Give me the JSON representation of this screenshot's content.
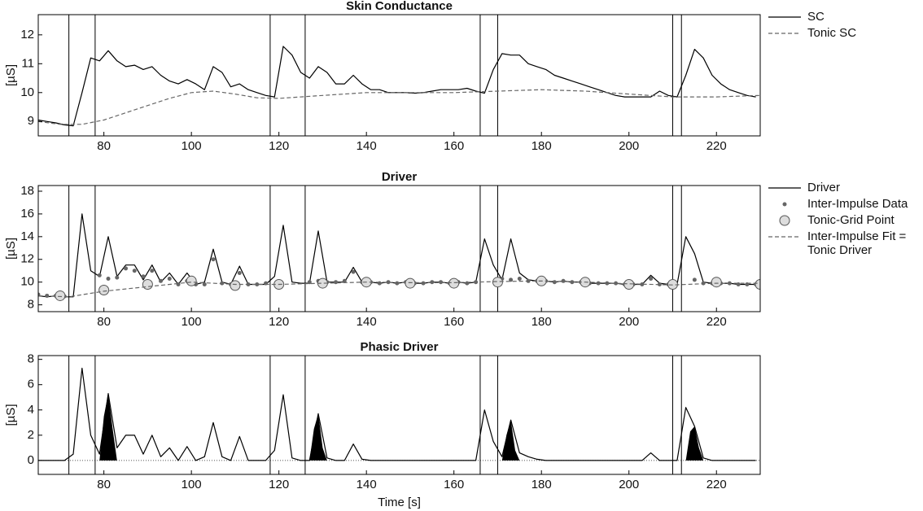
{
  "chart_data": [
    {
      "type": "line",
      "title": "Skin Conductance",
      "ylabel": "[µS]",
      "xlim": [
        65,
        230
      ],
      "ylim": [
        8.5,
        12.7
      ],
      "xticks": [
        80,
        100,
        120,
        140,
        160,
        180,
        200,
        220
      ],
      "yticks": [
        9,
        10,
        11,
        12
      ],
      "vlines": [
        72,
        78,
        118,
        126,
        166,
        170,
        210,
        212
      ],
      "series": [
        {
          "name": "SC",
          "color": "#000000",
          "style": "solid",
          "x": [
            65,
            67,
            69,
            71,
            73,
            75,
            77,
            79,
            81,
            83,
            85,
            87,
            89,
            91,
            93,
            95,
            97,
            99,
            101,
            103,
            105,
            107,
            109,
            111,
            113,
            115,
            117,
            119,
            121,
            123,
            125,
            127,
            129,
            131,
            133,
            135,
            137,
            139,
            141,
            143,
            145,
            147,
            149,
            151,
            153,
            155,
            157,
            159,
            161,
            163,
            165,
            167,
            169,
            171,
            173,
            175,
            177,
            179,
            181,
            183,
            185,
            187,
            189,
            191,
            193,
            195,
            197,
            199,
            201,
            203,
            205,
            207,
            209,
            211,
            213,
            215,
            217,
            219,
            221,
            223,
            225,
            227,
            229
          ],
          "values": [
            9.05,
            9.0,
            8.95,
            8.88,
            8.85,
            10.0,
            11.2,
            11.1,
            11.45,
            11.1,
            10.9,
            10.95,
            10.8,
            10.9,
            10.6,
            10.4,
            10.3,
            10.45,
            10.3,
            10.1,
            10.9,
            10.7,
            10.2,
            10.3,
            10.1,
            10.0,
            9.9,
            9.85,
            11.6,
            11.3,
            10.7,
            10.5,
            10.9,
            10.7,
            10.3,
            10.3,
            10.6,
            10.3,
            10.1,
            10.1,
            10.0,
            10.0,
            10.0,
            9.98,
            10.0,
            10.05,
            10.1,
            10.1,
            10.1,
            10.15,
            10.05,
            9.98,
            10.8,
            11.35,
            11.3,
            11.3,
            11.0,
            10.9,
            10.8,
            10.6,
            10.5,
            10.4,
            10.3,
            10.2,
            10.1,
            10.0,
            9.9,
            9.85,
            9.85,
            9.85,
            9.85,
            10.05,
            9.9,
            9.85,
            10.6,
            11.5,
            11.2,
            10.6,
            10.3,
            10.1,
            10.0,
            9.9,
            9.85
          ]
        },
        {
          "name": "Tonic SC",
          "color": "#666666",
          "style": "dashed",
          "x": [
            65,
            70,
            75,
            80,
            85,
            90,
            95,
            100,
            105,
            110,
            115,
            120,
            130,
            140,
            150,
            160,
            170,
            180,
            190,
            200,
            210,
            220,
            230
          ],
          "values": [
            9.0,
            8.9,
            8.9,
            9.05,
            9.3,
            9.55,
            9.8,
            10.0,
            10.05,
            9.95,
            9.82,
            9.8,
            9.9,
            10.0,
            10.0,
            10.0,
            10.05,
            10.1,
            10.05,
            9.95,
            9.85,
            9.85,
            9.9
          ]
        }
      ]
    },
    {
      "type": "line",
      "title": "Driver",
      "ylabel": "[µS]",
      "xlim": [
        65,
        230
      ],
      "ylim": [
        7.4,
        18.5
      ],
      "xticks": [
        80,
        100,
        120,
        140,
        160,
        180,
        200,
        220
      ],
      "yticks": [
        8,
        10,
        12,
        14,
        16,
        18
      ],
      "vlines": [
        72,
        78,
        118,
        126,
        166,
        170,
        210,
        212
      ],
      "series": [
        {
          "name": "Driver",
          "color": "#000000",
          "style": "solid",
          "x": [
            65,
            67,
            69,
            71,
            73,
            75,
            77,
            79,
            81,
            83,
            85,
            87,
            89,
            91,
            93,
            95,
            97,
            99,
            101,
            103,
            105,
            107,
            109,
            111,
            113,
            115,
            117,
            119,
            121,
            123,
            125,
            127,
            129,
            131,
            133,
            135,
            137,
            139,
            141,
            143,
            145,
            147,
            149,
            151,
            153,
            155,
            157,
            159,
            161,
            163,
            165,
            167,
            169,
            171,
            173,
            175,
            177,
            179,
            181,
            183,
            185,
            187,
            189,
            191,
            193,
            195,
            197,
            199,
            201,
            203,
            205,
            207,
            209,
            211,
            213,
            215,
            217,
            219,
            221,
            223,
            225,
            227,
            229
          ],
          "values": [
            8.8,
            8.7,
            8.8,
            8.7,
            8.7,
            16.0,
            11.0,
            10.5,
            14.0,
            10.5,
            11.5,
            11.5,
            10.2,
            11.5,
            10.0,
            10.8,
            9.8,
            10.8,
            9.8,
            10.0,
            12.9,
            10.0,
            9.8,
            11.4,
            9.8,
            9.8,
            9.8,
            10.5,
            15.0,
            10.0,
            9.9,
            9.9,
            14.5,
            10.0,
            10.0,
            10.0,
            11.3,
            10.0,
            10.0,
            9.9,
            10.0,
            9.9,
            10.0,
            9.9,
            9.9,
            10.0,
            10.0,
            9.9,
            10.0,
            9.9,
            10.0,
            13.8,
            11.5,
            10.2,
            13.8,
            10.8,
            10.2,
            10.1,
            10.1,
            10.0,
            10.1,
            10.0,
            10.0,
            9.9,
            9.9,
            9.9,
            9.9,
            9.8,
            9.8,
            9.8,
            10.6,
            9.9,
            9.8,
            9.8,
            14.0,
            12.5,
            10.0,
            9.9,
            9.9,
            9.9,
            9.8,
            9.8,
            9.8
          ]
        },
        {
          "name": "Inter-Impulse Data",
          "color": "#666666",
          "style": "dots",
          "x": [
            65,
            67,
            69,
            71,
            79,
            81,
            83,
            85,
            87,
            89,
            91,
            93,
            95,
            97,
            99,
            101,
            103,
            105,
            107,
            109,
            111,
            113,
            115,
            117,
            127,
            129,
            131,
            133,
            135,
            137,
            139,
            141,
            143,
            145,
            147,
            149,
            151,
            153,
            155,
            157,
            159,
            161,
            163,
            165,
            171,
            173,
            175,
            177,
            179,
            181,
            183,
            185,
            187,
            189,
            191,
            193,
            195,
            197,
            199,
            201,
            203,
            205,
            207,
            209,
            215,
            217,
            219,
            221,
            223,
            225,
            227,
            229
          ],
          "values": [
            8.9,
            8.8,
            8.8,
            8.75,
            10.6,
            10.3,
            10.4,
            11.2,
            11.0,
            10.5,
            11.0,
            10.1,
            10.3,
            9.8,
            10.1,
            9.8,
            9.8,
            12.0,
            9.9,
            9.8,
            10.8,
            9.8,
            9.8,
            9.9,
            10.0,
            10.1,
            10.0,
            10.0,
            10.1,
            10.9,
            10.0,
            10.0,
            9.9,
            10.0,
            9.9,
            10.0,
            9.9,
            9.9,
            10.0,
            10.0,
            9.9,
            10.0,
            9.9,
            10.0,
            10.3,
            10.2,
            10.3,
            10.1,
            10.1,
            10.1,
            10.0,
            10.1,
            10.0,
            10.0,
            9.9,
            9.9,
            9.9,
            9.9,
            9.8,
            9.8,
            9.8,
            10.3,
            9.8,
            9.8,
            10.2,
            9.9,
            9.9,
            9.9,
            9.9,
            9.8,
            9.8,
            9.8
          ]
        },
        {
          "name": "Tonic-Grid Point",
          "color": "#dddddd",
          "style": "circles",
          "x": [
            70,
            80,
            90,
            100,
            110,
            120,
            130,
            140,
            150,
            160,
            170,
            180,
            190,
            200,
            210,
            220,
            230
          ],
          "values": [
            8.8,
            9.3,
            9.8,
            10.1,
            9.7,
            9.8,
            9.9,
            10.0,
            9.9,
            9.9,
            10.0,
            10.1,
            10.0,
            9.8,
            9.8,
            10.0,
            9.8
          ]
        },
        {
          "name": "Inter-Impulse Fit = Tonic Driver",
          "color": "#666666",
          "style": "dashed",
          "x": [
            65,
            72,
            80,
            90,
            100,
            110,
            120,
            130,
            140,
            150,
            160,
            170,
            180,
            190,
            200,
            210,
            220,
            230
          ],
          "values": [
            8.8,
            8.7,
            9.2,
            9.6,
            10.0,
            9.8,
            9.8,
            9.9,
            10.0,
            9.95,
            9.95,
            10.05,
            10.1,
            10.0,
            9.85,
            9.75,
            9.9,
            9.9
          ]
        }
      ]
    },
    {
      "type": "line",
      "title": "Phasic Driver",
      "ylabel": "[µS]",
      "xlabel": "Time [s]",
      "xlim": [
        65,
        230
      ],
      "ylim": [
        -1.1,
        8.3
      ],
      "xticks": [
        80,
        100,
        120,
        140,
        160,
        180,
        200,
        220
      ],
      "yticks": [
        0,
        2,
        4,
        6,
        8
      ],
      "vlines": [
        72,
        78,
        118,
        126,
        166,
        170,
        210,
        212
      ],
      "series": [
        {
          "color": "#000000",
          "style": "solid",
          "x": [
            65,
            67,
            69,
            71,
            73,
            75,
            77,
            79,
            81,
            83,
            85,
            87,
            89,
            91,
            93,
            95,
            97,
            99,
            101,
            103,
            105,
            107,
            109,
            111,
            113,
            115,
            117,
            119,
            121,
            123,
            125,
            127,
            129,
            131,
            133,
            135,
            137,
            139,
            141,
            143,
            145,
            147,
            149,
            151,
            153,
            155,
            157,
            159,
            161,
            163,
            165,
            167,
            169,
            171,
            173,
            175,
            177,
            179,
            181,
            183,
            185,
            187,
            189,
            191,
            193,
            195,
            197,
            199,
            201,
            203,
            205,
            207,
            209,
            211,
            213,
            215,
            217,
            219,
            221,
            223,
            225,
            227,
            229
          ],
          "values": [
            0,
            0,
            0,
            0,
            0.5,
            7.3,
            2.0,
            0.5,
            5.3,
            1.0,
            2.0,
            2.0,
            0.5,
            2.0,
            0.3,
            1.0,
            0,
            1.1,
            0,
            0.3,
            3.0,
            0.3,
            0,
            1.9,
            0,
            0,
            0,
            0.8,
            5.2,
            0.2,
            0,
            0,
            3.7,
            0.2,
            0,
            0,
            1.3,
            0.1,
            0,
            0,
            0,
            0,
            0,
            0,
            0,
            0,
            0,
            0,
            0,
            0,
            0,
            4.0,
            1.5,
            0.3,
            3.2,
            0.6,
            0.3,
            0.1,
            0,
            0,
            0,
            0,
            0,
            0,
            0,
            0,
            0,
            0,
            0,
            0,
            0.6,
            0,
            0,
            0,
            4.2,
            2.7,
            0.2,
            0,
            0,
            0,
            0,
            0,
            0
          ]
        }
      ],
      "fills": [
        {
          "color": "#000000",
          "x": [
            79,
            80,
            81,
            82,
            83
          ],
          "values": [
            0,
            3.5,
            5.3,
            2.5,
            0
          ]
        },
        {
          "color": "#000000",
          "x": [
            127,
            128,
            129,
            130,
            131
          ],
          "values": [
            0,
            2.5,
            3.7,
            1.0,
            0
          ]
        },
        {
          "color": "#000000",
          "x": [
            171,
            172,
            173,
            174,
            175
          ],
          "values": [
            0,
            2.0,
            3.2,
            0.8,
            0
          ]
        },
        {
          "color": "#000000",
          "x": [
            213,
            214,
            215,
            216,
            217
          ],
          "values": [
            0,
            2.3,
            2.7,
            1.0,
            0
          ]
        }
      ]
    }
  ]
}
